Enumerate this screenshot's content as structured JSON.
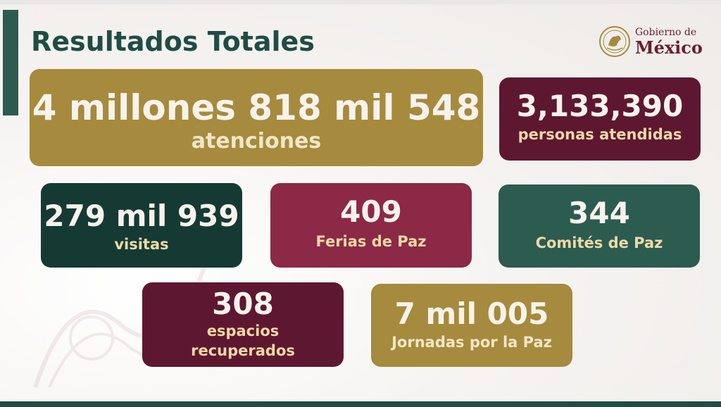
{
  "slide": {
    "title": "Resultados Totales"
  },
  "logo": {
    "line1": "Gobierno de",
    "line2": "México",
    "seal_icon": "mexico-seal-icon"
  },
  "cards": {
    "atenciones": {
      "number": "4 millones 818 mil 548",
      "label": "atenciones",
      "color": "#a68a3d"
    },
    "personas": {
      "number": "3,133,390",
      "label": "personas atendidas",
      "color": "#5e1730"
    },
    "visitas": {
      "number": "279 mil 939",
      "label": "visitas",
      "color": "#153a33"
    },
    "ferias": {
      "number": "409",
      "label": "Ferias de Paz",
      "color": "#8b2946"
    },
    "comites": {
      "number": "344",
      "label": "Comités de Paz",
      "color": "#2c5b50"
    },
    "espacios": {
      "number": "308",
      "label_line1": "espacios",
      "label_line2": "recuperados",
      "color": "#5e1730"
    },
    "jornadas": {
      "number": "7 mil 005",
      "label": "Jornadas por la Paz",
      "color": "#a68a3d"
    }
  }
}
